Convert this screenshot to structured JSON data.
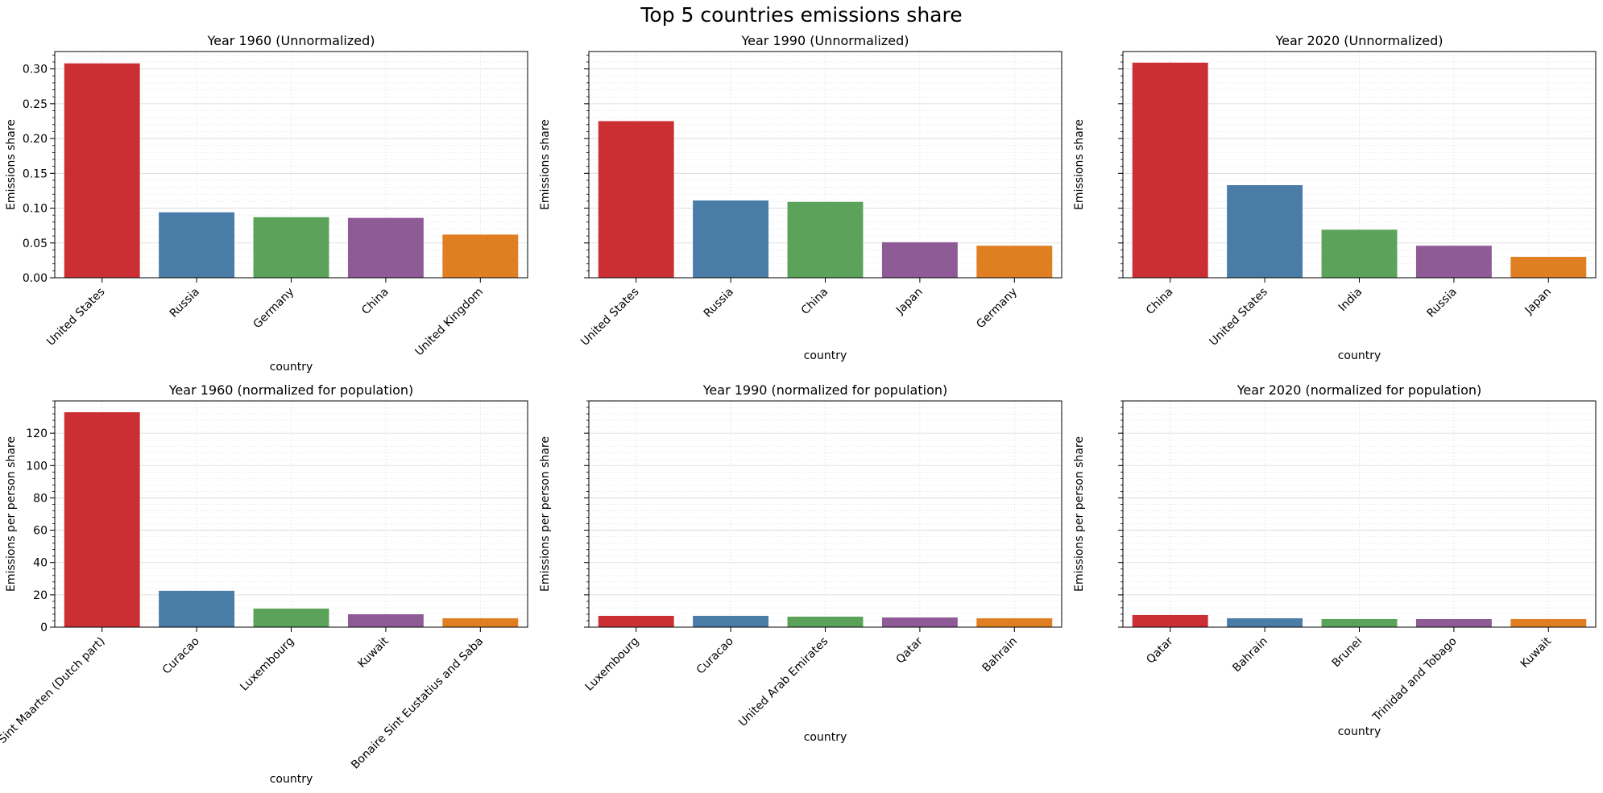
{
  "figure": {
    "suptitle": "Top 5 countries emissions share"
  },
  "colors": [
    "#cc2f33",
    "#4a7ca8",
    "#5ba35a",
    "#8f5b97",
    "#e07f22"
  ],
  "chart_data": [
    {
      "type": "bar",
      "title": "Year 1960 (Unnormalized)",
      "xlabel": "country",
      "ylabel": "Emissions share",
      "ylim": [
        0,
        0.325
      ],
      "yticks": [
        0.0,
        0.05,
        0.1,
        0.15,
        0.2,
        0.25,
        0.3
      ],
      "ytick_labels": [
        "0.00",
        "0.05",
        "0.10",
        "0.15",
        "0.20",
        "0.25",
        "0.30"
      ],
      "categories": [
        "United States",
        "Russia",
        "Germany",
        "China",
        "United Kingdom"
      ],
      "values": [
        0.308,
        0.094,
        0.087,
        0.086,
        0.062
      ],
      "grid": true
    },
    {
      "type": "bar",
      "title": "Year 1990 (Unnormalized)",
      "xlabel": "country",
      "ylabel": "Emissions share",
      "ylim": [
        0,
        0.325
      ],
      "yticks": [
        0.0,
        0.05,
        0.1,
        0.15,
        0.2,
        0.25,
        0.3
      ],
      "ytick_labels": [],
      "categories": [
        "United States",
        "Russia",
        "China",
        "Japan",
        "Germany"
      ],
      "values": [
        0.225,
        0.111,
        0.109,
        0.051,
        0.046
      ],
      "grid": true
    },
    {
      "type": "bar",
      "title": "Year 2020 (Unnormalized)",
      "xlabel": "country",
      "ylabel": "Emissions share",
      "ylim": [
        0,
        0.325
      ],
      "yticks": [
        0.0,
        0.05,
        0.1,
        0.15,
        0.2,
        0.25,
        0.3
      ],
      "ytick_labels": [],
      "categories": [
        "China",
        "United States",
        "India",
        "Russia",
        "Japan"
      ],
      "values": [
        0.309,
        0.133,
        0.069,
        0.046,
        0.03
      ],
      "grid": true
    },
    {
      "type": "bar",
      "title": "Year 1960 (normalized for population)",
      "xlabel": "country",
      "ylabel": "Emissions per person share",
      "ylim": [
        0,
        140
      ],
      "yticks": [
        0,
        20,
        40,
        60,
        80,
        100,
        120
      ],
      "ytick_labels": [
        "0",
        "20",
        "40",
        "60",
        "80",
        "100",
        "120"
      ],
      "categories": [
        "Sint Maarten (Dutch part)",
        "Curacao",
        "Luxembourg",
        "Kuwait",
        "Bonaire Sint Eustatius and Saba"
      ],
      "values": [
        133,
        22.5,
        11.5,
        8,
        5.5
      ],
      "grid": true
    },
    {
      "type": "bar",
      "title": "Year 1990 (normalized for population)",
      "xlabel": "country",
      "ylabel": "Emissions per person share",
      "ylim": [
        0,
        140
      ],
      "yticks": [
        0,
        20,
        40,
        60,
        80,
        100,
        120
      ],
      "ytick_labels": [],
      "categories": [
        "Luxembourg",
        "Curacao",
        "United Arab Emirates",
        "Qatar",
        "Bahrain"
      ],
      "values": [
        7,
        7,
        6.5,
        6,
        5.5
      ],
      "grid": true
    },
    {
      "type": "bar",
      "title": "Year 2020 (normalized for population)",
      "xlabel": "country",
      "ylabel": "Emissions per person share",
      "ylim": [
        0,
        140
      ],
      "yticks": [
        0,
        20,
        40,
        60,
        80,
        100,
        120
      ],
      "ytick_labels": [],
      "categories": [
        "Qatar",
        "Bahrain",
        "Brunei",
        "Trinidad and Tobago",
        "Kuwait"
      ],
      "values": [
        7.5,
        5.5,
        5,
        5,
        5
      ],
      "grid": true
    }
  ]
}
